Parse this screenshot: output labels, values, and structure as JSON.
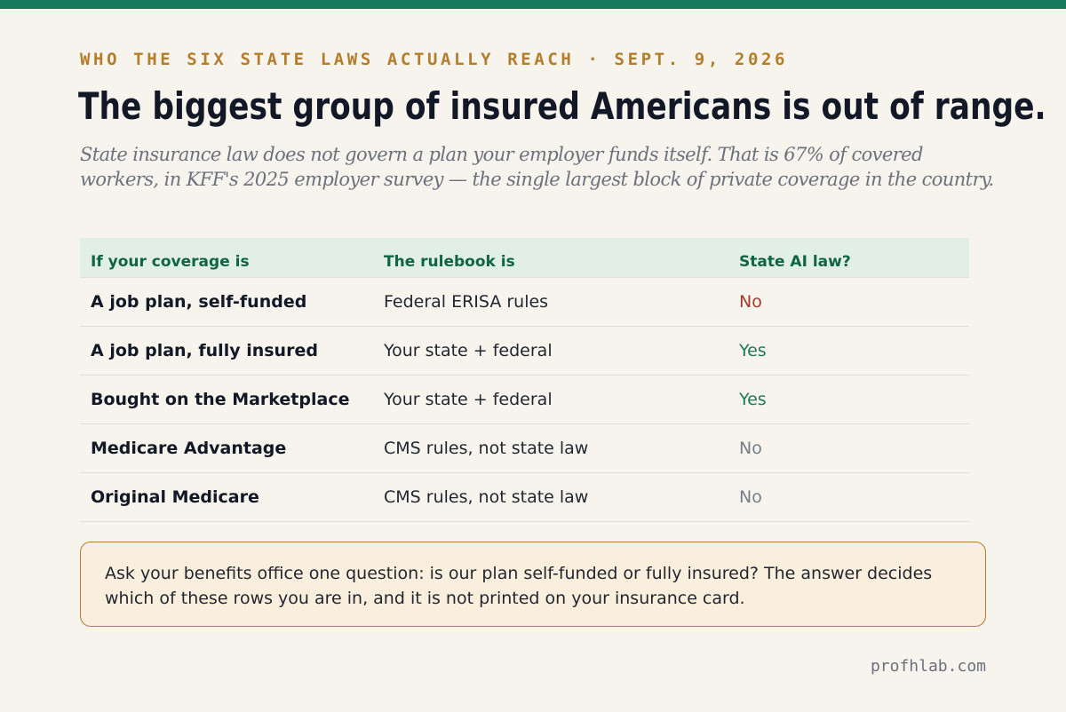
{
  "kicker": "WHO THE SIX STATE LAWS ACTUALLY REACH · SEPT. 9, 2026",
  "headline": "The biggest group of insured Americans is out of range.",
  "dek": "State insurance law does not govern a plan your employer funds itself. That is 67% of covered workers, in KFF's 2025 employer survey — the single largest block of private coverage in the country.",
  "table": {
    "headers": [
      "If your coverage is",
      "The rulebook is",
      "State AI law?"
    ],
    "rows": [
      {
        "coverage": "A job plan, self-funded",
        "rulebook": "Federal ERISA rules",
        "state_ai_law": "No",
        "status_color": "#a63a2d"
      },
      {
        "coverage": "A job plan, fully insured",
        "rulebook": "Your state + federal",
        "state_ai_law": "Yes",
        "status_color": "#1e7a52"
      },
      {
        "coverage": "Bought on the Marketplace",
        "rulebook": "Your state + federal",
        "state_ai_law": "Yes",
        "status_color": "#1e7a52"
      },
      {
        "coverage": "Medicare Advantage",
        "rulebook": "CMS rules, not state law",
        "state_ai_law": "No",
        "status_color": "#737e88"
      },
      {
        "coverage": "Original Medicare",
        "rulebook": "CMS rules, not state law",
        "state_ai_law": "No",
        "status_color": "#737e88"
      }
    ]
  },
  "callout": "Ask your benefits office one question: is our plan self-funded or fully insured? The answer decides which of these rows you are in, and it is not printed on your insurance card.",
  "footer": "profhlab.com",
  "colors": {
    "accent_green": "#177a5b",
    "kicker_gold": "#b47d2c",
    "callout_border": "#b37d33",
    "callout_bg": "#faeedc"
  }
}
